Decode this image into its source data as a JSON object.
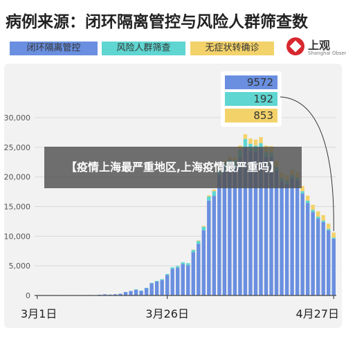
{
  "title": "病例来源：闭环隔离管控与风险人群筛查数",
  "legend": [
    {
      "label": "闭环隔离管控",
      "color": "#6a8fe0"
    },
    {
      "label": "风险人群筛查",
      "color": "#5fd6d1"
    },
    {
      "label": "无症状转确诊",
      "color": "#f3d26a"
    }
  ],
  "logo": {
    "name": "上观",
    "sub": "Shanghai Observer",
    "icon": "shanghai-observer-logo-icon"
  },
  "overlay_text": "【疫情上海最严重地区,上海疫情最严重吗】",
  "colors": {
    "bar_primary": "#6a8fe0",
    "bar_secondary": "#5fd6d1",
    "bar_tertiary": "#f3d26a",
    "grid": "#d9d9d9",
    "background": "#f2f2f2"
  },
  "chart_data": {
    "type": "bar",
    "stacked": true,
    "ylim": [
      0,
      30000
    ],
    "yticks": [
      "0",
      "5,000",
      "10,000",
      "15,000",
      "20,000",
      "25,000",
      "30,000"
    ],
    "ytick_values": [
      0,
      5000,
      10000,
      15000,
      20000,
      25000,
      30000
    ],
    "xtick_labels": [
      {
        "label": "3月1日",
        "index": 0
      },
      {
        "label": "3月26日",
        "index": 25
      },
      {
        "label": "4月27日",
        "index": 57
      }
    ],
    "grid": true,
    "callout": {
      "values": [
        "9572",
        "192",
        "853"
      ],
      "bar_index": 57
    },
    "series": [
      {
        "color": "#6a8fe0",
        "values": [
          2,
          6,
          2,
          8,
          2,
          38,
          43,
          51,
          62,
          64,
          78,
          64,
          130,
          202,
          150,
          210,
          300,
          590,
          758,
          1000,
          800,
          1250,
          2050,
          2350,
          2600,
          3450,
          4500,
          4700,
          5300,
          5100,
          7300,
          8700,
          11000,
          16000,
          16800,
          20300,
          21200,
          21700,
          21400,
          23200,
          24900,
          24400,
          24200,
          24700,
          23300,
          23300,
          21000,
          19200,
          18800,
          19800,
          19400,
          17200,
          15600,
          14100,
          13000,
          12400,
          11000,
          9572
        ]
      },
      {
        "color": "#5fd6d1",
        "values": [
          0,
          0,
          0,
          0,
          0,
          0,
          0,
          0,
          0,
          0,
          0,
          0,
          0,
          0,
          0,
          0,
          0,
          0,
          0,
          20,
          30,
          40,
          80,
          120,
          160,
          180,
          250,
          260,
          300,
          350,
          400,
          500,
          600,
          700,
          800,
          1000,
          1100,
          1200,
          1300,
          1400,
          1500,
          1200,
          1100,
          1000,
          900,
          800,
          700,
          600,
          600,
          500,
          500,
          400,
          400,
          350,
          300,
          250,
          220,
          192
        ]
      },
      {
        "color": "#f3d26a",
        "values": [
          0,
          0,
          0,
          0,
          0,
          0,
          0,
          0,
          0,
          0,
          0,
          0,
          0,
          0,
          0,
          0,
          0,
          0,
          0,
          0,
          0,
          0,
          0,
          0,
          0,
          0,
          0,
          0,
          0,
          0,
          50,
          100,
          150,
          200,
          250,
          300,
          400,
          500,
          600,
          700,
          800,
          900,
          1000,
          1000,
          1100,
          1100,
          1000,
          1000,
          900,
          900,
          900,
          850,
          850,
          850,
          900,
          900,
          900,
          853
        ]
      }
    ]
  }
}
